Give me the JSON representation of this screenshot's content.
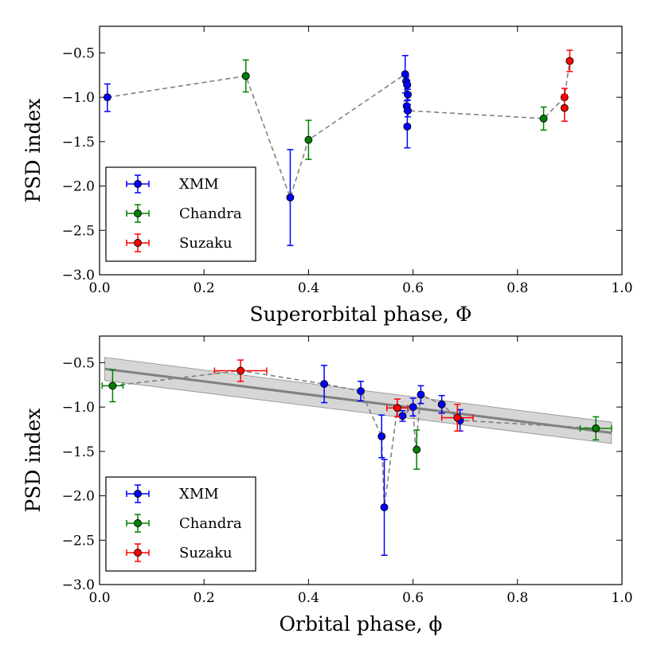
{
  "chart_data": [
    {
      "type": "scatter",
      "xlabel": "Superorbital phase,  Φ",
      "ylabel": "PSD index",
      "xlim": [
        0.0,
        1.0
      ],
      "ylim": [
        -3.0,
        -0.2
      ],
      "xticks": [
        "0.0",
        "0.2",
        "0.4",
        "0.6",
        "0.8",
        "1.0"
      ],
      "yticks": [
        "−3.0",
        "−2.5",
        "−2.0",
        "−1.5",
        "−1.0",
        "−0.5"
      ],
      "legend": {
        "position": "lower-left",
        "entries": [
          "XMM",
          "Chandra",
          "Suzaku"
        ]
      },
      "connector": {
        "style": "dashed",
        "color": "#808080",
        "points": [
          [
            0.015,
            -1.0
          ],
          [
            0.28,
            -0.76
          ],
          [
            0.365,
            -2.13
          ],
          [
            0.4,
            -1.48
          ],
          [
            0.585,
            -0.74
          ],
          [
            0.59,
            -1.15
          ],
          [
            0.85,
            -1.24
          ],
          [
            0.89,
            -1.0
          ],
          [
            0.9,
            -0.59
          ]
        ]
      },
      "series": [
        {
          "name": "XMM",
          "color": "#0000ff",
          "points": [
            {
              "x": 0.015,
              "y": -1.0,
              "yerr": [
                0.16,
                0.15
              ]
            },
            {
              "x": 0.365,
              "y": -2.13,
              "yerr": [
                0.54,
                0.54
              ]
            },
            {
              "x": 0.585,
              "y": -0.74,
              "yerr": [
                0.21,
                0.21
              ]
            },
            {
              "x": 0.587,
              "y": -0.82,
              "yerr": [
                0.05,
                0.05
              ]
            },
            {
              "x": 0.589,
              "y": -0.86,
              "yerr": [
                0.05,
                0.05
              ]
            },
            {
              "x": 0.59,
              "y": -0.97,
              "yerr": [
                0.06,
                0.06
              ]
            },
            {
              "x": 0.588,
              "y": -1.1,
              "yerr": [
                0.06,
                0.06
              ]
            },
            {
              "x": 0.59,
              "y": -1.15,
              "yerr": [
                0.07,
                0.07
              ]
            },
            {
              "x": 0.589,
              "y": -1.33,
              "yerr": [
                0.24,
                0.24
              ]
            }
          ]
        },
        {
          "name": "Chandra",
          "color": "#008000",
          "points": [
            {
              "x": 0.28,
              "y": -0.76,
              "yerr": [
                0.18,
                0.18
              ]
            },
            {
              "x": 0.4,
              "y": -1.48,
              "yerr": [
                0.22,
                0.22
              ]
            },
            {
              "x": 0.85,
              "y": -1.24,
              "yerr": [
                0.13,
                0.13
              ]
            }
          ]
        },
        {
          "name": "Suzaku",
          "color": "#ff0000",
          "points": [
            {
              "x": 0.89,
              "y": -1.0,
              "yerr": [
                0.1,
                0.1
              ]
            },
            {
              "x": 0.89,
              "y": -1.12,
              "yerr": [
                0.15,
                0.15
              ]
            },
            {
              "x": 0.9,
              "y": -0.59,
              "yerr": [
                0.12,
                0.12
              ]
            }
          ]
        }
      ]
    },
    {
      "type": "scatter",
      "xlabel": "Orbital phase,  ϕ",
      "ylabel": "PSD index",
      "xlim": [
        0.0,
        1.0
      ],
      "ylim": [
        -3.0,
        -0.2
      ],
      "xticks": [
        "0.0",
        "0.2",
        "0.4",
        "0.6",
        "0.8",
        "1.0"
      ],
      "yticks": [
        "−3.0",
        "−2.5",
        "−2.0",
        "−1.5",
        "−1.0",
        "−0.5"
      ],
      "legend": {
        "position": "lower-left",
        "entries": [
          "XMM",
          "Chandra",
          "Suzaku"
        ]
      },
      "fit": {
        "x": [
          0.01,
          0.98
        ],
        "y": [
          -0.57,
          -1.29
        ],
        "band_low": [
          -0.7,
          -1.41
        ],
        "band_high": [
          -0.44,
          -1.17
        ],
        "color": "#808080"
      },
      "connector": {
        "style": "dashed",
        "color": "#808080",
        "points": [
          [
            0.025,
            -0.76
          ],
          [
            0.27,
            -0.59
          ],
          [
            0.43,
            -0.74
          ],
          [
            0.5,
            -0.82
          ],
          [
            0.54,
            -1.33
          ],
          [
            0.545,
            -2.13
          ],
          [
            0.57,
            -1.01
          ],
          [
            0.58,
            -1.1
          ],
          [
            0.6,
            -1.0
          ],
          [
            0.605,
            -1.48
          ],
          [
            0.615,
            -0.86
          ],
          [
            0.655,
            -0.97
          ],
          [
            0.685,
            -1.12
          ],
          [
            0.69,
            -1.15
          ],
          [
            0.95,
            -1.24
          ]
        ]
      },
      "series": [
        {
          "name": "XMM",
          "color": "#0000ff",
          "points": [
            {
              "x": 0.43,
              "y": -0.74,
              "yerr": [
                0.21,
                0.21
              ]
            },
            {
              "x": 0.5,
              "y": -0.82,
              "yerr": [
                0.11,
                0.11
              ]
            },
            {
              "x": 0.54,
              "y": -1.33,
              "yerr": [
                0.24,
                0.24
              ]
            },
            {
              "x": 0.545,
              "y": -2.13,
              "yerr": [
                0.54,
                0.54
              ]
            },
            {
              "x": 0.58,
              "y": -1.1,
              "yerr": [
                0.06,
                0.06
              ]
            },
            {
              "x": 0.6,
              "y": -1.0,
              "yerr": [
                0.1,
                0.1
              ]
            },
            {
              "x": 0.615,
              "y": -0.86,
              "yerr": [
                0.1,
                0.1
              ]
            },
            {
              "x": 0.655,
              "y": -0.97,
              "yerr": [
                0.1,
                0.1
              ]
            },
            {
              "x": 0.69,
              "y": -1.15,
              "yerr": [
                0.12,
                0.12
              ]
            }
          ]
        },
        {
          "name": "Chandra",
          "color": "#008000",
          "points": [
            {
              "x": 0.025,
              "y": -0.76,
              "yerr": [
                0.18,
                0.18
              ],
              "xerr": 0.02
            },
            {
              "x": 0.607,
              "y": -1.48,
              "yerr": [
                0.22,
                0.22
              ]
            },
            {
              "x": 0.95,
              "y": -1.24,
              "yerr": [
                0.13,
                0.13
              ],
              "xerr": 0.03
            }
          ]
        },
        {
          "name": "Suzaku",
          "color": "#ff0000",
          "points": [
            {
              "x": 0.27,
              "y": -0.59,
              "yerr": [
                0.12,
                0.12
              ],
              "xerr": 0.05
            },
            {
              "x": 0.57,
              "y": -1.01,
              "yerr": [
                0.1,
                0.1
              ],
              "xerr": 0.02
            },
            {
              "x": 0.685,
              "y": -1.12,
              "yerr": [
                0.15,
                0.15
              ],
              "xerr": 0.03
            }
          ]
        }
      ]
    }
  ]
}
